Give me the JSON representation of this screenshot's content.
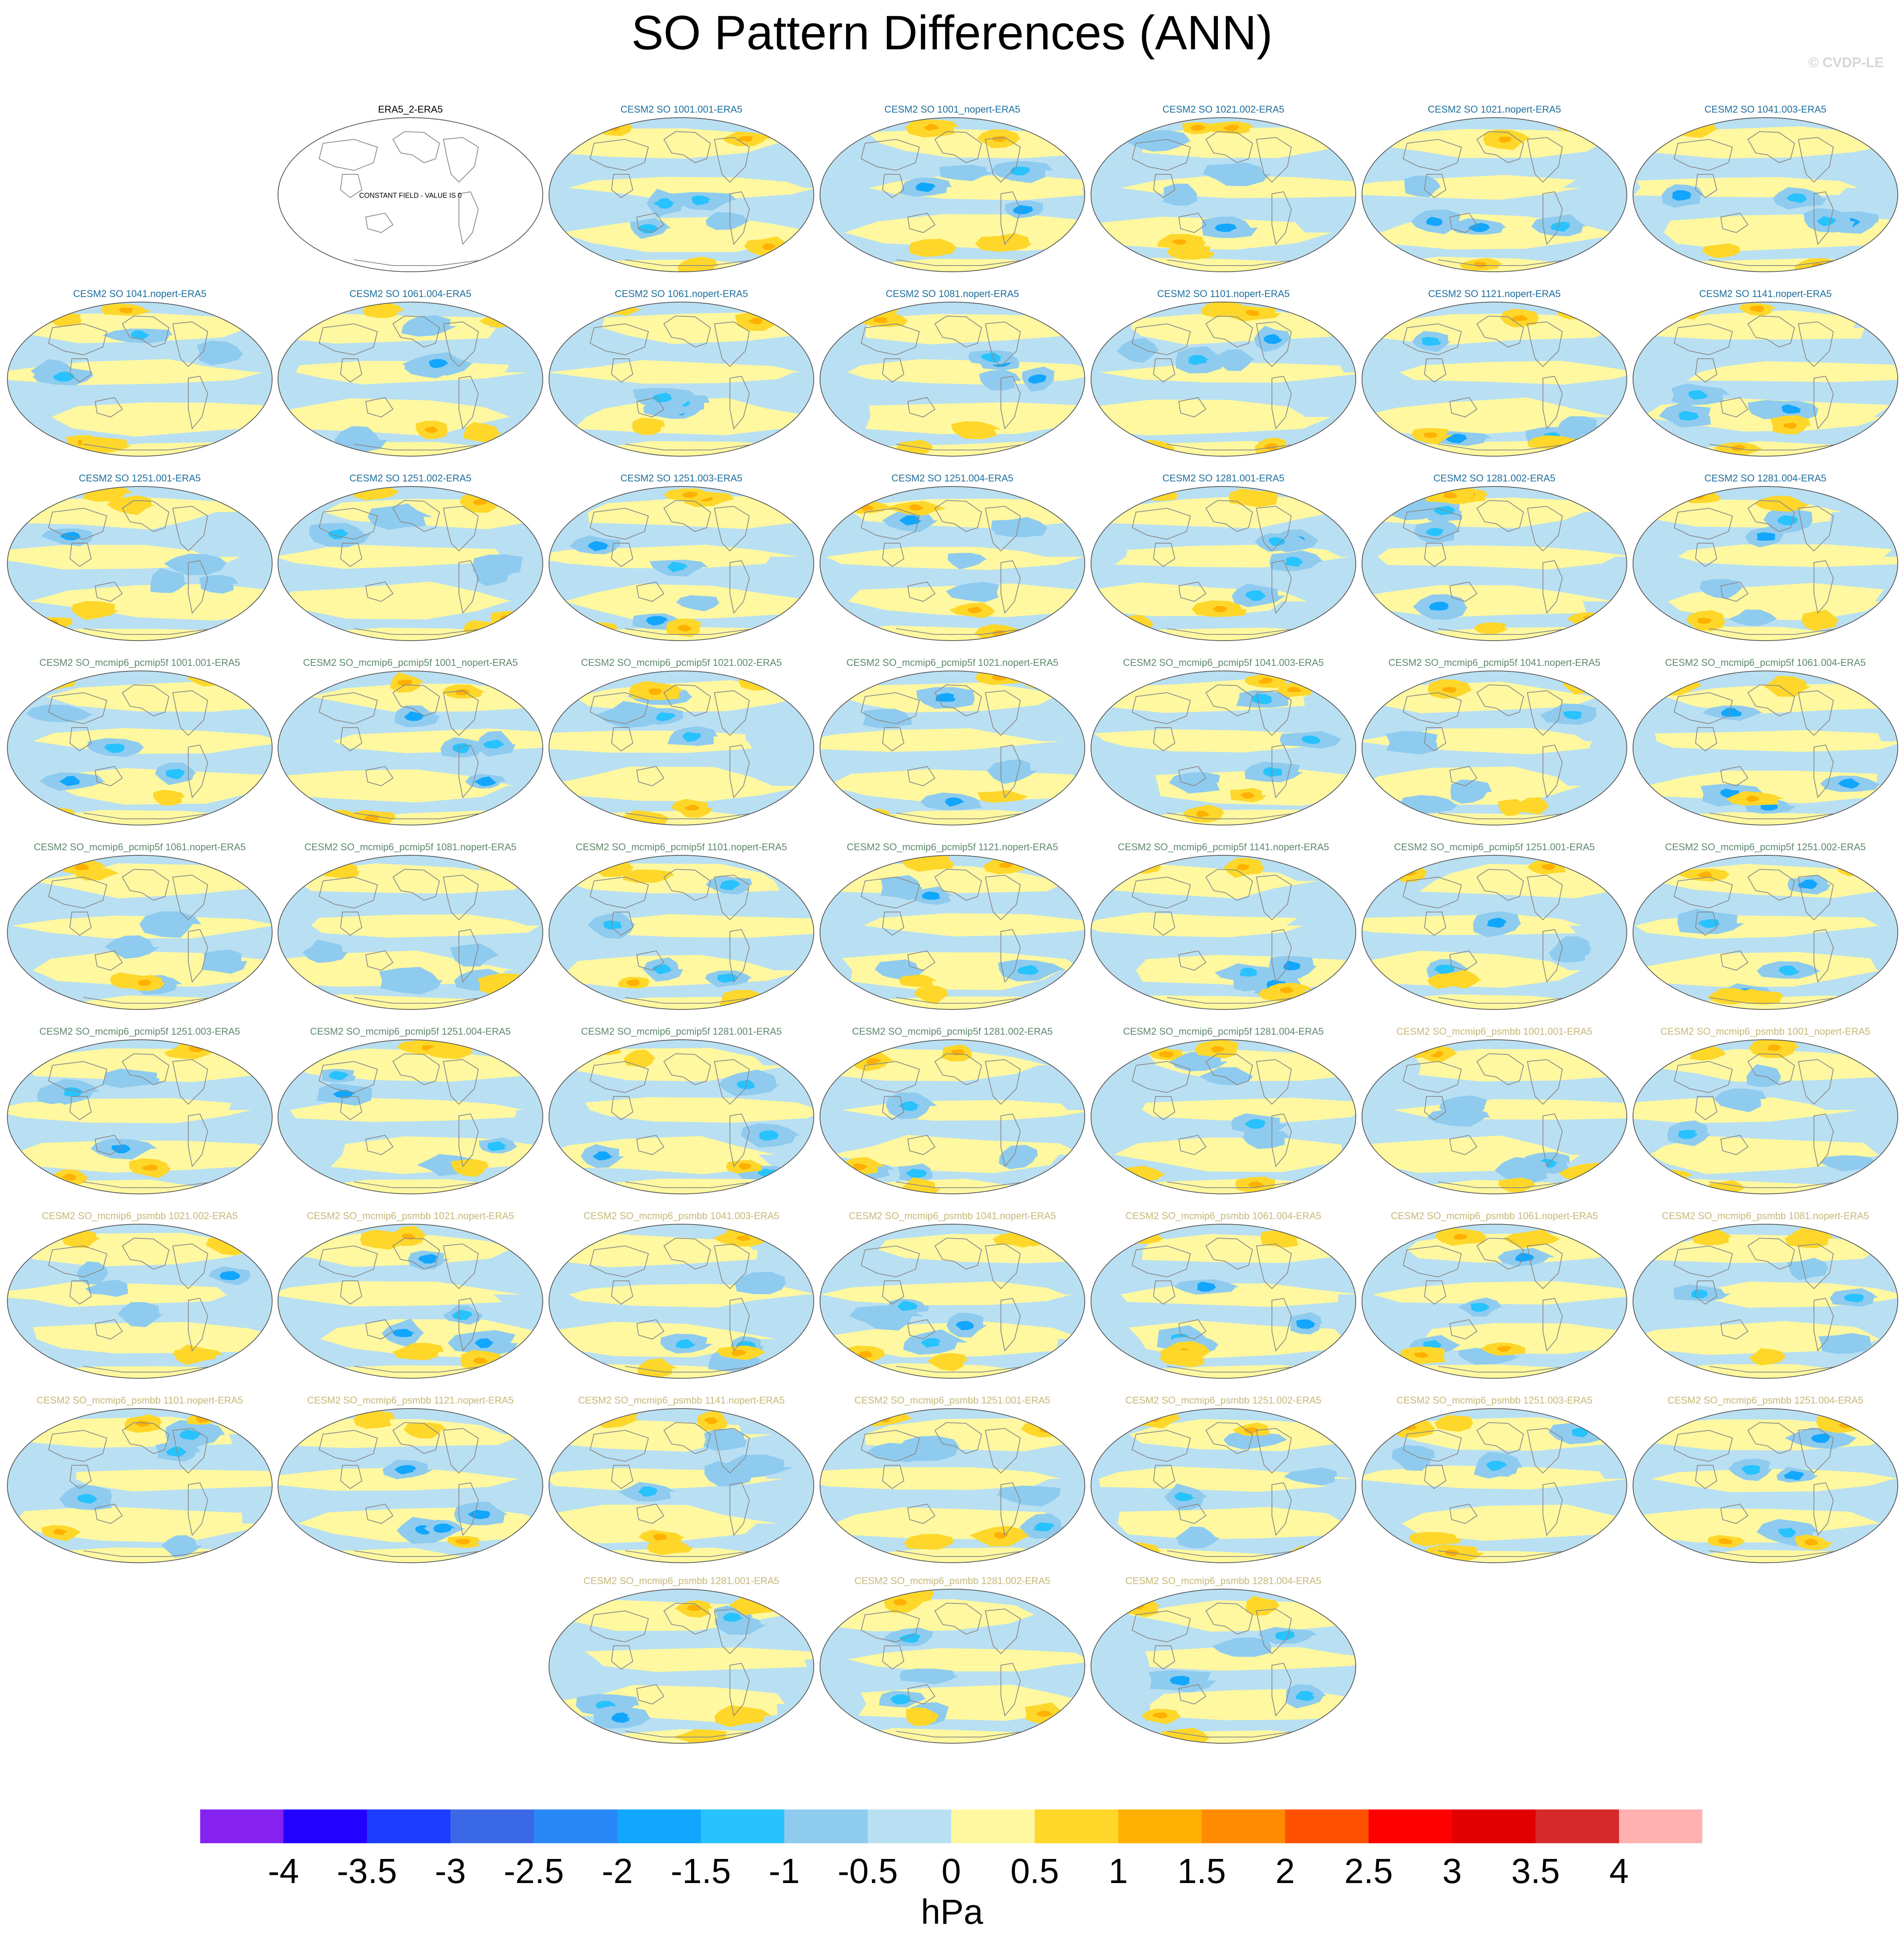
{
  "title": "SO Pattern Differences (ANN)",
  "watermark": "© CVDP-LE",
  "colors": {
    "ocean_blue": "#b8dff2",
    "land_line": "#8a8a8a",
    "group_cesm2_so": "#1f6fa0",
    "group_pcmip5f": "#5f8a6e",
    "group_psmbb": "#c8b87a",
    "reference": "#000000"
  },
  "panels": [
    {
      "label": "ERA5_2-ERA5",
      "group": "reference",
      "note": "CONSTANT FIELD - VALUE IS 0",
      "seed": 0
    },
    {
      "label": "CESM2 SO 1001.001-ERA5",
      "group": "cesm2_so",
      "seed": 1
    },
    {
      "label": "CESM2 SO 1001_nopert-ERA5",
      "group": "cesm2_so",
      "seed": 2
    },
    {
      "label": "CESM2 SO 1021.002-ERA5",
      "group": "cesm2_so",
      "seed": 3
    },
    {
      "label": "CESM2 SO 1021.nopert-ERA5",
      "group": "cesm2_so",
      "seed": 4
    },
    {
      "label": "CESM2 SO 1041.003-ERA5",
      "group": "cesm2_so",
      "seed": 5
    },
    {
      "label": "CESM2 SO 1041.nopert-ERA5",
      "group": "cesm2_so",
      "seed": 6
    },
    {
      "label": "CESM2 SO 1061.004-ERA5",
      "group": "cesm2_so",
      "seed": 7
    },
    {
      "label": "CESM2 SO 1061.nopert-ERA5",
      "group": "cesm2_so",
      "seed": 8
    },
    {
      "label": "CESM2 SO 1081.nopert-ERA5",
      "group": "cesm2_so",
      "seed": 9
    },
    {
      "label": "CESM2 SO 1101.nopert-ERA5",
      "group": "cesm2_so",
      "seed": 10
    },
    {
      "label": "CESM2 SO 1121.nopert-ERA5",
      "group": "cesm2_so",
      "seed": 11
    },
    {
      "label": "CESM2 SO 1141.nopert-ERA5",
      "group": "cesm2_so",
      "seed": 12
    },
    {
      "label": "CESM2 SO 1251.001-ERA5",
      "group": "cesm2_so",
      "seed": 13
    },
    {
      "label": "CESM2 SO 1251.002-ERA5",
      "group": "cesm2_so",
      "seed": 14
    },
    {
      "label": "CESM2 SO 1251.003-ERA5",
      "group": "cesm2_so",
      "seed": 15
    },
    {
      "label": "CESM2 SO 1251.004-ERA5",
      "group": "cesm2_so",
      "seed": 16
    },
    {
      "label": "CESM2 SO 1281.001-ERA5",
      "group": "cesm2_so",
      "seed": 17
    },
    {
      "label": "CESM2 SO 1281.002-ERA5",
      "group": "cesm2_so",
      "seed": 18
    },
    {
      "label": "CESM2 SO 1281.004-ERA5",
      "group": "cesm2_so",
      "seed": 19
    },
    {
      "label": "CESM2 SO_mcmip6_pcmip5f 1001.001-ERA5",
      "group": "pcmip5f",
      "seed": 20
    },
    {
      "label": "CESM2 SO_mcmip6_pcmip5f 1001_nopert-ERA5",
      "group": "pcmip5f",
      "seed": 21
    },
    {
      "label": "CESM2 SO_mcmip6_pcmip5f 1021.002-ERA5",
      "group": "pcmip5f",
      "seed": 22
    },
    {
      "label": "CESM2 SO_mcmip6_pcmip5f 1021.nopert-ERA5",
      "group": "pcmip5f",
      "seed": 23
    },
    {
      "label": "CESM2 SO_mcmip6_pcmip5f 1041.003-ERA5",
      "group": "pcmip5f",
      "seed": 24
    },
    {
      "label": "CESM2 SO_mcmip6_pcmip5f 1041.nopert-ERA5",
      "group": "pcmip5f",
      "seed": 25
    },
    {
      "label": "CESM2 SO_mcmip6_pcmip5f 1061.004-ERA5",
      "group": "pcmip5f",
      "seed": 26
    },
    {
      "label": "CESM2 SO_mcmip6_pcmip5f 1061.nopert-ERA5",
      "group": "pcmip5f",
      "seed": 27
    },
    {
      "label": "CESM2 SO_mcmip6_pcmip5f 1081.nopert-ERA5",
      "group": "pcmip5f",
      "seed": 28
    },
    {
      "label": "CESM2 SO_mcmip6_pcmip5f 1101.nopert-ERA5",
      "group": "pcmip5f",
      "seed": 29
    },
    {
      "label": "CESM2 SO_mcmip6_pcmip5f 1121.nopert-ERA5",
      "group": "pcmip5f",
      "seed": 30
    },
    {
      "label": "CESM2 SO_mcmip6_pcmip5f 1141.nopert-ERA5",
      "group": "pcmip5f",
      "seed": 31
    },
    {
      "label": "CESM2 SO_mcmip6_pcmip5f 1251.001-ERA5",
      "group": "pcmip5f",
      "seed": 32
    },
    {
      "label": "CESM2 SO_mcmip6_pcmip5f 1251.002-ERA5",
      "group": "pcmip5f",
      "seed": 33
    },
    {
      "label": "CESM2 SO_mcmip6_pcmip5f 1251.003-ERA5",
      "group": "pcmip5f",
      "seed": 34
    },
    {
      "label": "CESM2 SO_mcmip6_pcmip5f 1251.004-ERA5",
      "group": "pcmip5f",
      "seed": 35
    },
    {
      "label": "CESM2 SO_mcmip6_pcmip5f 1281.001-ERA5",
      "group": "pcmip5f",
      "seed": 36
    },
    {
      "label": "CESM2 SO_mcmip6_pcmip5f 1281.002-ERA5",
      "group": "pcmip5f",
      "seed": 37
    },
    {
      "label": "CESM2 SO_mcmip6_pcmip5f 1281.004-ERA5",
      "group": "pcmip5f",
      "seed": 38
    },
    {
      "label": "CESM2 SO_mcmip6_psmbb 1001.001-ERA5",
      "group": "psmbb",
      "seed": 39
    },
    {
      "label": "CESM2 SO_mcmip6_psmbb 1001_nopert-ERA5",
      "group": "psmbb",
      "seed": 40
    },
    {
      "label": "CESM2 SO_mcmip6_psmbb 1021.002-ERA5",
      "group": "psmbb",
      "seed": 41
    },
    {
      "label": "CESM2 SO_mcmip6_psmbb 1021.nopert-ERA5",
      "group": "psmbb",
      "seed": 42
    },
    {
      "label": "CESM2 SO_mcmip6_psmbb 1041.003-ERA5",
      "group": "psmbb",
      "seed": 43
    },
    {
      "label": "CESM2 SO_mcmip6_psmbb 1041.nopert-ERA5",
      "group": "psmbb",
      "seed": 44
    },
    {
      "label": "CESM2 SO_mcmip6_psmbb 1061.004-ERA5",
      "group": "psmbb",
      "seed": 45
    },
    {
      "label": "CESM2 SO_mcmip6_psmbb 1061.nopert-ERA5",
      "group": "psmbb",
      "seed": 46
    },
    {
      "label": "CESM2 SO_mcmip6_psmbb 1081.nopert-ERA5",
      "group": "psmbb",
      "seed": 47
    },
    {
      "label": "CESM2 SO_mcmip6_psmbb 1101.nopert-ERA5",
      "group": "psmbb",
      "seed": 48
    },
    {
      "label": "CESM2 SO_mcmip6_psmbb 1121.nopert-ERA5",
      "group": "psmbb",
      "seed": 49
    },
    {
      "label": "CESM2 SO_mcmip6_psmbb 1141.nopert-ERA5",
      "group": "psmbb",
      "seed": 50
    },
    {
      "label": "CESM2 SO_mcmip6_psmbb 1251.001-ERA5",
      "group": "psmbb",
      "seed": 51
    },
    {
      "label": "CESM2 SO_mcmip6_psmbb 1251.002-ERA5",
      "group": "psmbb",
      "seed": 52
    },
    {
      "label": "CESM2 SO_mcmip6_psmbb 1251.003-ERA5",
      "group": "psmbb",
      "seed": 53
    },
    {
      "label": "CESM2 SO_mcmip6_psmbb 1251.004-ERA5",
      "group": "psmbb",
      "seed": 54
    },
    {
      "label": "CESM2 SO_mcmip6_psmbb 1281.001-ERA5",
      "group": "psmbb",
      "seed": 55
    },
    {
      "label": "CESM2 SO_mcmip6_psmbb 1281.002-ERA5",
      "group": "psmbb",
      "seed": 56
    },
    {
      "label": "CESM2 SO_mcmip6_psmbb 1281.004-ERA5",
      "group": "psmbb",
      "seed": 57
    }
  ],
  "colorbar": {
    "units": "hPa",
    "ticks": [
      "-4",
      "-3.5",
      "-3",
      "-2.5",
      "-2",
      "-1.5",
      "-1",
      "-0.5",
      "0",
      "0.5",
      "1",
      "1.5",
      "2",
      "2.5",
      "3",
      "3.5",
      "4"
    ],
    "colors": [
      "#8522f0",
      "#2400ff",
      "#1e3cff",
      "#3a68e6",
      "#2a87f7",
      "#12a6ff",
      "#28c3ff",
      "#8ecbee",
      "#b8e0f2",
      "#fff8a0",
      "#ffd62a",
      "#ffb000",
      "#ff8c00",
      "#ff5000",
      "#ff0000",
      "#e00000",
      "#d62a2a",
      "#ffb0b0"
    ]
  }
}
